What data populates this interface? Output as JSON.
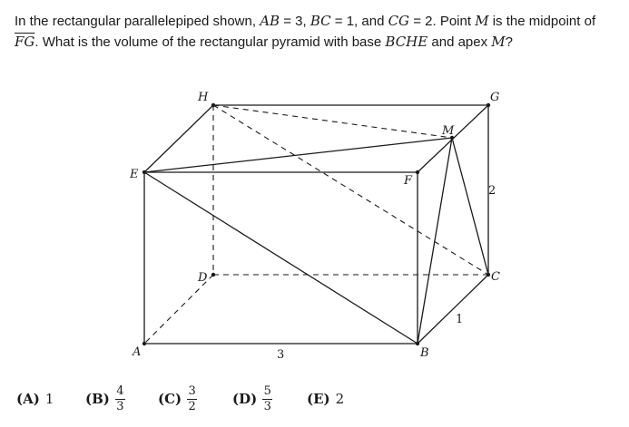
{
  "question": {
    "t1": "In the rectangular parallelepiped shown, ",
    "ab": "AB",
    "t2": " = 3, ",
    "bc": "BC",
    "t3": " = 1, and ",
    "cg": "CG",
    "t4": " = 2. Point ",
    "m": "M",
    "t5": " is the midpoint of ",
    "fg": "FG",
    "t6": ". What is the volume of the rectangular pyramid with base ",
    "base": "BCHE",
    "t7": " and apex ",
    "apex": "M",
    "t8": "?"
  },
  "figure": {
    "points": {
      "H": "H",
      "G": "G",
      "M": "M",
      "E": "E",
      "F": "F",
      "D": "D",
      "C": "C",
      "A": "A",
      "B": "B"
    },
    "labels": {
      "ab_length": "3",
      "cg_length": "2",
      "bc_length": "1"
    }
  },
  "choices": [
    {
      "label": "(A)",
      "value": "1"
    },
    {
      "label": "(B)",
      "num": "4",
      "den": "3"
    },
    {
      "label": "(C)",
      "num": "3",
      "den": "2"
    },
    {
      "label": "(D)",
      "num": "5",
      "den": "3"
    },
    {
      "label": "(E)",
      "value": "2"
    }
  ]
}
